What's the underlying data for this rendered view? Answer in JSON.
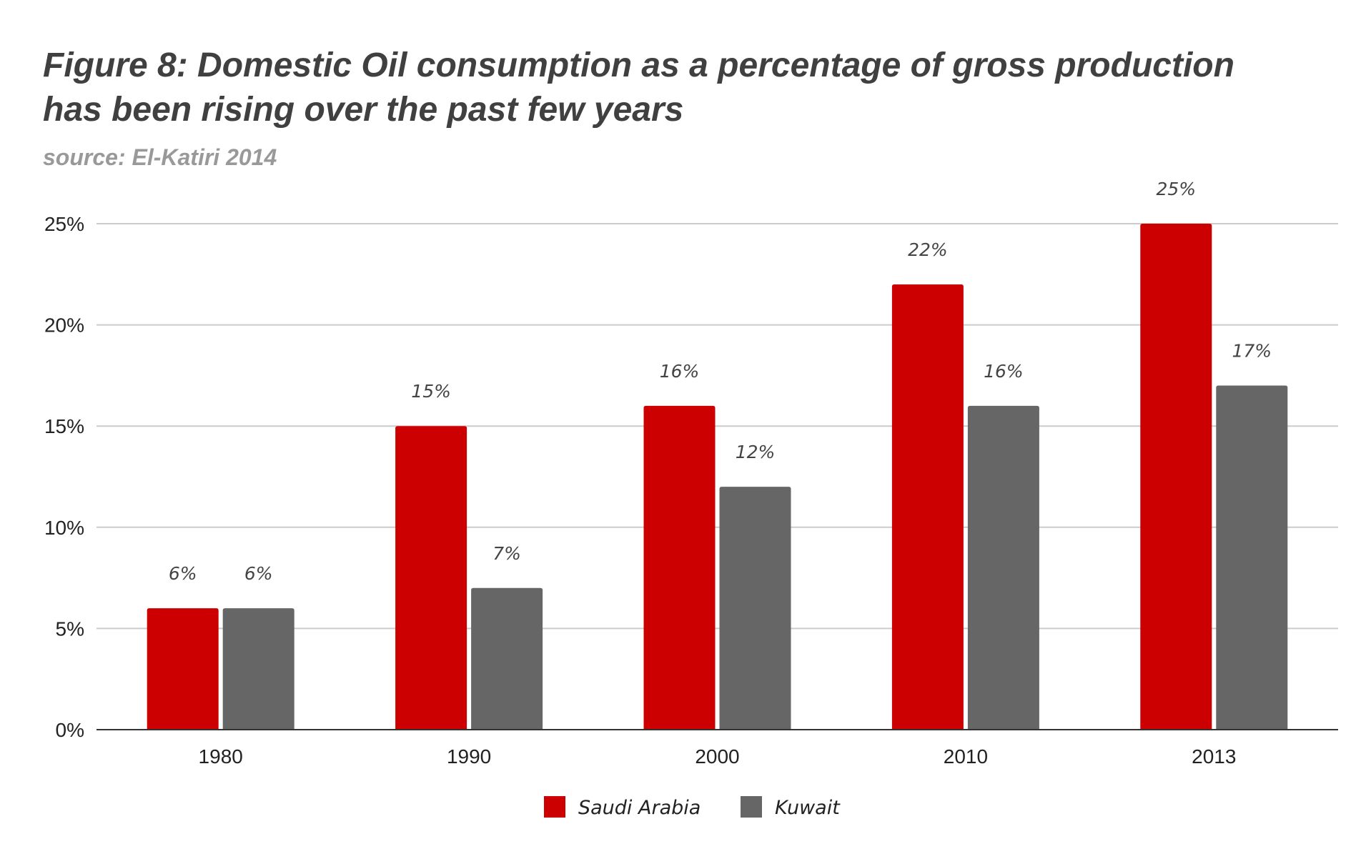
{
  "chart_data": {
    "type": "bar",
    "title": [
      "Figure 8: Domestic Oil consumption as a percentage of gross production",
      "has been rising over the past few years"
    ],
    "subtitle": "source: El-Katiri 2014",
    "categories": [
      "1980",
      "1990",
      "2000",
      "2010",
      "2013"
    ],
    "series": [
      {
        "name": "Saudi Arabia",
        "color": "#cc0000",
        "values": [
          6,
          15,
          16,
          22,
          25
        ],
        "labels": [
          "6%",
          "15%",
          "16%",
          "22%",
          "25%"
        ]
      },
      {
        "name": "Kuwait",
        "color": "#666666",
        "values": [
          6,
          7,
          12,
          16,
          17
        ],
        "labels": [
          "6%",
          "7%",
          "12%",
          "16%",
          "17%"
        ]
      }
    ],
    "ylim": [
      0,
      25
    ],
    "yticks": [
      0,
      5,
      10,
      15,
      20,
      25
    ],
    "ytick_labels": [
      "0%",
      "5%",
      "10%",
      "15%",
      "20%",
      "25%"
    ],
    "xlabel": "",
    "ylabel": "",
    "grid": true,
    "legend_position": "bottom-center"
  }
}
